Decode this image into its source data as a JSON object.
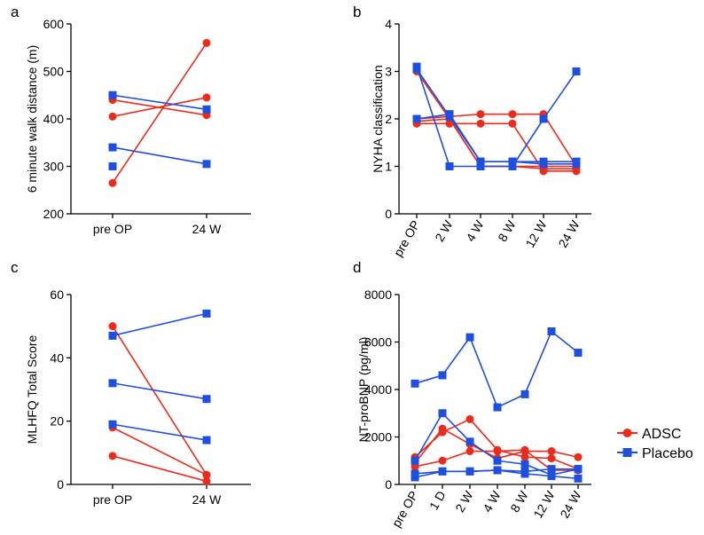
{
  "colors": {
    "adsc": "#ee2a1b",
    "placebo": "#1d4fe0"
  },
  "legend": [
    {
      "name": "ADSC",
      "color": "#ee2a1b",
      "marker": "circle"
    },
    {
      "name": "Placebo",
      "color": "#1d4fe0",
      "marker": "square"
    }
  ],
  "chart_data": [
    {
      "panel": "a",
      "type": "line",
      "title": "",
      "xlabel": "",
      "ylabel": "6 minute walk distance (m)",
      "categories": [
        "pre OP",
        "24 W"
      ],
      "ylim": [
        200,
        600
      ],
      "yticks": [
        200,
        300,
        400,
        500,
        600
      ],
      "x_tick_rotation": 0,
      "series": [
        {
          "name": "ADSC",
          "group": "adsc",
          "values": [
            265,
            560
          ]
        },
        {
          "name": "ADSC",
          "group": "adsc",
          "values": [
            440,
            408
          ]
        },
        {
          "name": "ADSC",
          "group": "adsc",
          "values": [
            405,
            445
          ]
        },
        {
          "name": "Placebo",
          "group": "placebo",
          "values": [
            450,
            420
          ]
        },
        {
          "name": "Placebo",
          "group": "placebo",
          "values": [
            340,
            305
          ]
        },
        {
          "name": "Placebo",
          "group": "placebo",
          "values": [
            300,
            null
          ]
        }
      ]
    },
    {
      "panel": "b",
      "type": "line",
      "title": "",
      "xlabel": "",
      "ylabel": "NYHA classification",
      "categories": [
        "pre OP",
        "2 W",
        "4 W",
        "8 W",
        "12 W",
        "24 W"
      ],
      "ylim": [
        0,
        4
      ],
      "yticks": [
        0,
        1,
        2,
        3,
        4
      ],
      "x_tick_rotation": -60,
      "series": [
        {
          "name": "ADSC",
          "group": "adsc",
          "values": [
            3.0,
            2.0,
            1.0,
            1.0,
            1.0,
            1.0
          ]
        },
        {
          "name": "ADSC",
          "group": "adsc",
          "values": [
            2.0,
            2.05,
            2.1,
            2.1,
            2.1,
            1.0
          ]
        },
        {
          "name": "ADSC",
          "group": "adsc",
          "values": [
            1.9,
            1.9,
            1.9,
            1.9,
            0.9,
            0.9
          ]
        },
        {
          "name": "ADSC",
          "group": "adsc",
          "values": [
            1.95,
            2.0,
            1.0,
            1.0,
            0.95,
            0.95
          ]
        },
        {
          "name": "Placebo",
          "group": "placebo",
          "values": [
            3.1,
            1.0,
            1.0,
            1.0,
            2.0,
            3.0
          ]
        },
        {
          "name": "Placebo",
          "group": "placebo",
          "values": [
            2.0,
            2.1,
            1.1,
            1.1,
            1.1,
            1.1
          ]
        },
        {
          "name": "Placebo",
          "group": "placebo",
          "values": [
            3.05,
            2.05,
            1.1,
            1.1,
            1.05,
            1.05
          ]
        }
      ]
    },
    {
      "panel": "c",
      "type": "line",
      "title": "",
      "xlabel": "",
      "ylabel": "MLHFQ Total Score",
      "categories": [
        "pre OP",
        "24 W"
      ],
      "ylim": [
        0,
        60
      ],
      "yticks": [
        0,
        20,
        40,
        60
      ],
      "x_tick_rotation": 0,
      "series": [
        {
          "name": "ADSC",
          "group": "adsc",
          "values": [
            50,
            3
          ]
        },
        {
          "name": "ADSC",
          "group": "adsc",
          "values": [
            18,
            3
          ]
        },
        {
          "name": "ADSC",
          "group": "adsc",
          "values": [
            9,
            1
          ]
        },
        {
          "name": "Placebo",
          "group": "placebo",
          "values": [
            47,
            54
          ]
        },
        {
          "name": "Placebo",
          "group": "placebo",
          "values": [
            32,
            27
          ]
        },
        {
          "name": "Placebo",
          "group": "placebo",
          "values": [
            19,
            14
          ]
        }
      ]
    },
    {
      "panel": "d",
      "type": "line",
      "title": "",
      "xlabel": "",
      "ylabel": "NT-proBNP (pg/ml)",
      "categories": [
        "pre OP",
        "1 D",
        "2 W",
        "4 W",
        "8 W",
        "12 W",
        "24 W"
      ],
      "ylim": [
        0,
        8000
      ],
      "yticks": [
        0,
        2000,
        4000,
        6000,
        8000
      ],
      "x_tick_rotation": -60,
      "series": [
        {
          "name": "ADSC",
          "group": "adsc",
          "values": [
            1150,
            2200,
            2750,
            1450,
            1150,
            1100,
            650
          ]
        },
        {
          "name": "ADSC",
          "group": "adsc",
          "values": [
            900,
            2350,
            1700,
            1100,
            1400,
            1400,
            1150
          ]
        },
        {
          "name": "ADSC",
          "group": "adsc",
          "values": [
            750,
            1000,
            1400,
            1400,
            1450,
            600,
            600
          ]
        },
        {
          "name": "Placebo",
          "group": "placebo",
          "values": [
            4250,
            4600,
            6200,
            3250,
            3800,
            6450,
            5550
          ]
        },
        {
          "name": "Placebo",
          "group": "placebo",
          "values": [
            1000,
            3000,
            1800,
            1000,
            850,
            400,
            650
          ]
        },
        {
          "name": "Placebo",
          "group": "placebo",
          "values": [
            450,
            550,
            550,
            600,
            550,
            650,
            650
          ]
        },
        {
          "name": "Placebo",
          "group": "placebo",
          "values": [
            300,
            550,
            550,
            600,
            450,
            350,
            250
          ]
        }
      ]
    }
  ]
}
